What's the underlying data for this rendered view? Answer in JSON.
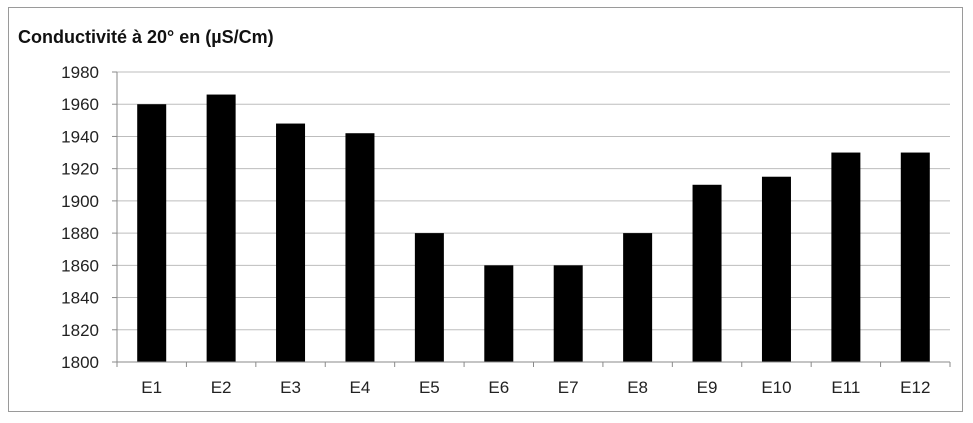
{
  "chart_data": {
    "type": "bar",
    "title": "Conductivité à 20° en (µS/Cm)",
    "xlabel": "",
    "ylabel": "",
    "categories": [
      "E1",
      "E2",
      "E3",
      "E4",
      "E5",
      "E6",
      "E7",
      "E8",
      "E9",
      "E10",
      "E11",
      "E12"
    ],
    "values": [
      1960,
      1966,
      1948,
      1942,
      1880,
      1860,
      1860,
      1880,
      1910,
      1915,
      1930,
      1930
    ],
    "ylim": [
      1800,
      1980
    ],
    "yticks": [
      "1800",
      "1820",
      "1840",
      "1860",
      "1880",
      "1900",
      "1920",
      "1940",
      "1960",
      "1980"
    ],
    "grid": true,
    "legend": "none",
    "colors": {
      "bar": "#000000",
      "grid": "#bdbdbd",
      "axis": "#8a8a8a"
    }
  }
}
